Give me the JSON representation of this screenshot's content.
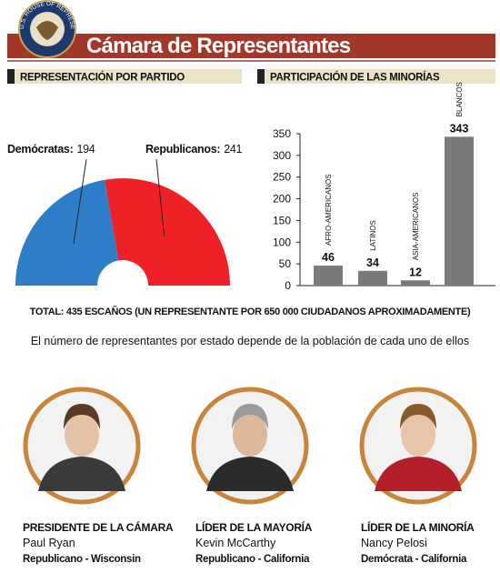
{
  "header": {
    "title": "Cámara de Representantes",
    "seal": "U.S. HOUSE OF REPRESENTATIVES"
  },
  "chart_data": [
    {
      "type": "semicircle",
      "title": "REPRESENTACIÓN POR PARTIDO",
      "categories": [
        "Demócratas:",
        "Republicanos:"
      ],
      "values": [
        194,
        241
      ],
      "colors": [
        "#2e7dc9",
        "#ee2127"
      ]
    },
    {
      "type": "bar",
      "title": "PARTICIPACIÓN DE LAS MINORÍAS",
      "categories": [
        "AFRO-AMERICANOS",
        "LATINOS",
        "ASIA-AMERICANOS",
        "BLANCOS"
      ],
      "values": [
        46,
        34,
        12,
        343
      ],
      "color": "#7a7a7a",
      "ylim": [
        0,
        350
      ],
      "yticks": [
        0,
        50,
        100,
        150,
        200,
        250,
        300,
        350
      ]
    }
  ],
  "total": "TOTAL: 435 ESCAÑOS (UN REPRESENTANTE POR 650 000 CIUDADANOS APROXIMADAMENTE)",
  "note": "El número de representantes por estado depende de la población de cada uno de ellos",
  "leaders": [
    {
      "role": "PRESIDENTE DE LA CÁMARA",
      "name": "Paul Ryan",
      "party": "Republicano - Wisconsin"
    },
    {
      "role": "LÍDER DE LA MAYORÍA",
      "name": "Kevin McCarthy",
      "party": "Republicano - California"
    },
    {
      "role": "LÍDER DE LA MINORÍA",
      "name": "Nancy Pelosi",
      "party": "Demócrata - California"
    }
  ]
}
